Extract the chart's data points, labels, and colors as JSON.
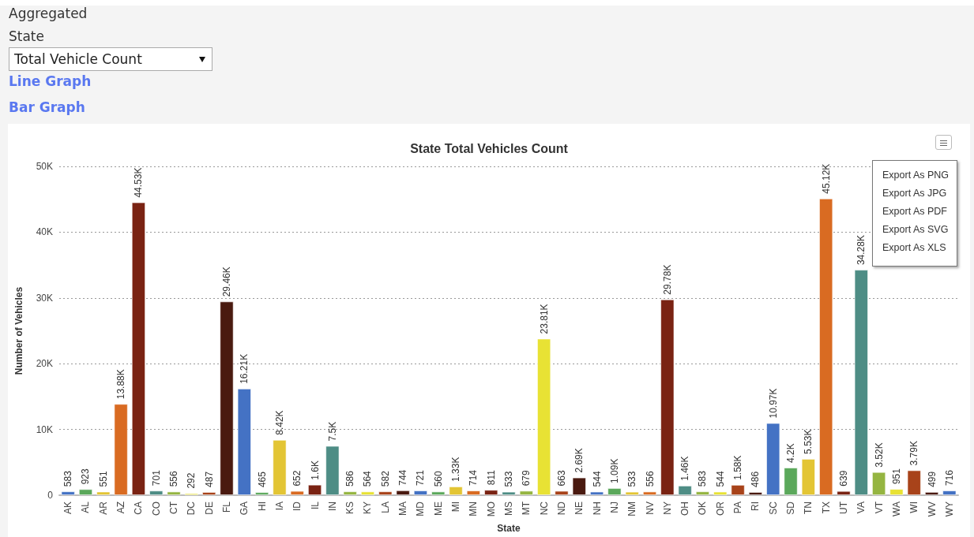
{
  "chart_data": {
    "type": "bar",
    "title": "State Total Vehicles Count",
    "xlabel": "State",
    "ylabel": "Number of Vehicles",
    "annotations": [
      "Aggregated",
      "State",
      "Total Vehicle Count",
      "Line Graph",
      "Bar Graph",
      "Export As PNG",
      "Export As JPG",
      "Export As PDF",
      "Export As SVG",
      "Export As XLS"
    ],
    "categories": [
      "AK",
      "AL",
      "AR",
      "AZ",
      "CA",
      "CO",
      "CT",
      "DC",
      "DE",
      "FL",
      "GA",
      "HI",
      "IA",
      "ID",
      "IL",
      "IN",
      "KS",
      "KY",
      "LA",
      "MA",
      "MD",
      "ME",
      "MI",
      "MN",
      "MO",
      "MS",
      "MT",
      "NC",
      "ND",
      "NE",
      "NH",
      "NJ",
      "NM",
      "NV",
      "NY",
      "OH",
      "OK",
      "OR",
      "PA",
      "RI",
      "SC",
      "SD",
      "TN",
      "TX",
      "UT",
      "VA",
      "VT",
      "WA",
      "WI",
      "WV",
      "WY"
    ],
    "values": [
      583,
      923,
      551,
      13880,
      44530,
      701,
      556,
      292,
      487,
      29460,
      16210,
      465,
      8420,
      652,
      1600,
      7500,
      586,
      564,
      582,
      744,
      721,
      560,
      1330,
      714,
      811,
      533,
      679,
      23810,
      663,
      2690,
      544,
      1090,
      533,
      556,
      29780,
      1460,
      583,
      544,
      1580,
      486,
      10970,
      4200,
      5530,
      45120,
      639,
      34280,
      3520,
      951,
      3790,
      499,
      716
    ],
    "value_labels": [
      "583",
      "923",
      "551",
      "13.88K",
      "44.53K",
      "701",
      "556",
      "292",
      "487",
      "29.46K",
      "16.21K",
      "465",
      "8.42K",
      "652",
      "1.6K",
      "7.5K",
      "586",
      "564",
      "582",
      "744",
      "721",
      "560",
      "1.33K",
      "714",
      "811",
      "533",
      "679",
      "23.81K",
      "663",
      "2.69K",
      "544",
      "1.09K",
      "533",
      "556",
      "29.78K",
      "1.46K",
      "583",
      "544",
      "1.58K",
      "486",
      "10.97K",
      "4.2K",
      "5.53K",
      "45.12K",
      "639",
      "34.28K",
      "3.52K",
      "951",
      "3.79K",
      "499",
      "716"
    ],
    "colors": [
      "#4472c4",
      "#5ba85b",
      "#e3c534",
      "#d96b22",
      "#7a2313",
      "#4e8d85",
      "#95b541",
      "#e8e234",
      "#a8431a",
      "#4a1a10",
      "#4472c4",
      "#5ba85b",
      "#e3c534",
      "#d96b22",
      "#7a2313",
      "#4e8d85",
      "#95b541",
      "#e8e234",
      "#a8431a",
      "#4a1a10",
      "#4472c4",
      "#5ba85b",
      "#e3c534",
      "#d96b22",
      "#7a2313",
      "#4e8d85",
      "#95b541",
      "#e8e234",
      "#a8431a",
      "#4a1a10",
      "#4472c4",
      "#5ba85b",
      "#e3c534",
      "#d96b22",
      "#7a2313",
      "#4e8d85",
      "#95b541",
      "#e8e234",
      "#a8431a",
      "#4a1a10",
      "#4472c4",
      "#5ba85b",
      "#e3c534",
      "#d96b22",
      "#7a2313",
      "#4e8d85",
      "#95b541",
      "#e8e234",
      "#a8431a",
      "#4a1a10",
      "#4472c4"
    ],
    "ylim": [
      0,
      50000
    ],
    "yticks": [
      0,
      {
        "value": 10000,
        "label": "10K"
      },
      {
        "value": 20000,
        "label": "20K"
      },
      {
        "value": 30000,
        "label": "30K"
      },
      {
        "value": 40000,
        "label": "40K"
      },
      {
        "value": 50000,
        "label": "50K"
      }
    ],
    "grid": "y"
  }
}
